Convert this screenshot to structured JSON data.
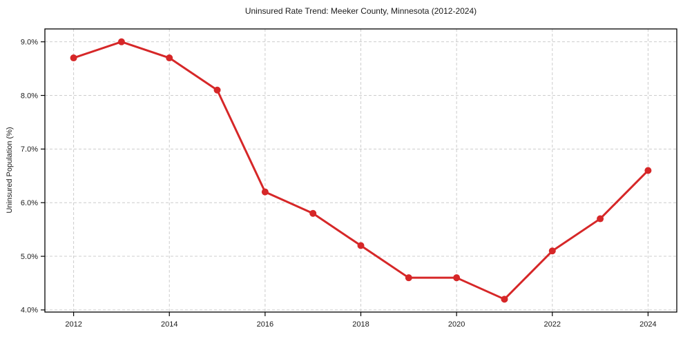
{
  "chart_data": {
    "type": "line",
    "title": "Uninsured Rate Trend: Meeker County, Minnesota (2012-2024)",
    "ylabel": "Uninsured Population (%)",
    "xlabel": "",
    "x": [
      2012,
      2013,
      2014,
      2015,
      2016,
      2017,
      2018,
      2019,
      2020,
      2021,
      2022,
      2023,
      2024
    ],
    "values": [
      8.7,
      9.0,
      8.7,
      8.1,
      6.2,
      5.8,
      5.2,
      4.6,
      4.6,
      4.2,
      5.1,
      5.7,
      6.6
    ],
    "xlim": [
      2011.4,
      2024.6
    ],
    "ylim": [
      3.96,
      9.24
    ],
    "xticks": {
      "values": [
        2012,
        2014,
        2016,
        2018,
        2020,
        2022,
        2024
      ],
      "labels": [
        "2012",
        "2014",
        "2016",
        "2018",
        "2020",
        "2022",
        "2024"
      ]
    },
    "yticks": {
      "values": [
        4,
        5,
        6,
        7,
        8,
        9
      ],
      "labels": [
        "4.0%",
        "5.0%",
        "6.0%",
        "7.0%",
        "8.0%",
        "9.0%"
      ]
    },
    "grid": true,
    "grid_style": "dashed",
    "legend": "none",
    "marker": "circle",
    "line_color": "#d62728",
    "grid_color": "#cccccc",
    "axis_color": "#000000",
    "text_color": "#1a1a1a",
    "background": "#ffffff"
  }
}
